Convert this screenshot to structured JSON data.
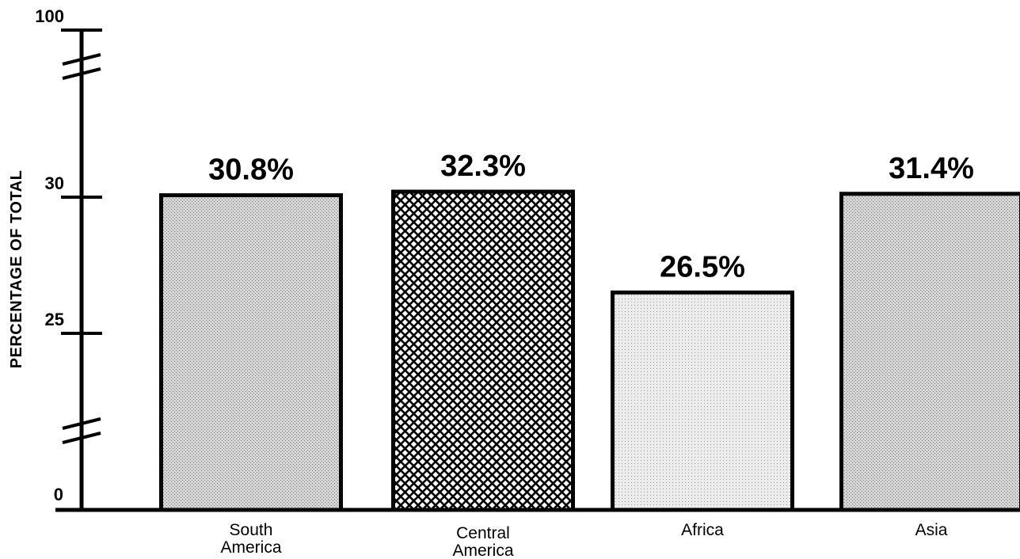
{
  "chart_data": {
    "type": "bar",
    "categories": [
      [
        "South",
        "America"
      ],
      [
        "Central",
        "America"
      ],
      [
        "Africa"
      ],
      [
        "Asia"
      ]
    ],
    "values": [
      30.8,
      32.3,
      26.5,
      31.4
    ],
    "data_labels": [
      "30.8%",
      "32.3%",
      "26.5%",
      "31.4%"
    ],
    "title": "",
    "xlabel": "",
    "ylabel": "PERCENTAGE OF TOTAL",
    "y_ticks": [
      {
        "value": 0,
        "label": "0"
      },
      {
        "value": 25,
        "label": "25"
      },
      {
        "value": 30,
        "label": "30"
      },
      {
        "value": 100,
        "label": "100"
      }
    ],
    "y_axis_breaks": [
      "between 0 and 25",
      "between 30 and 100"
    ],
    "grid": false,
    "legend": "none",
    "bar_fills": [
      "stipple-medium",
      "crosshatch-dark",
      "stipple-light",
      "stipple-medium"
    ],
    "colors": {
      "ink": "#000000",
      "background": "#ffffff"
    }
  }
}
